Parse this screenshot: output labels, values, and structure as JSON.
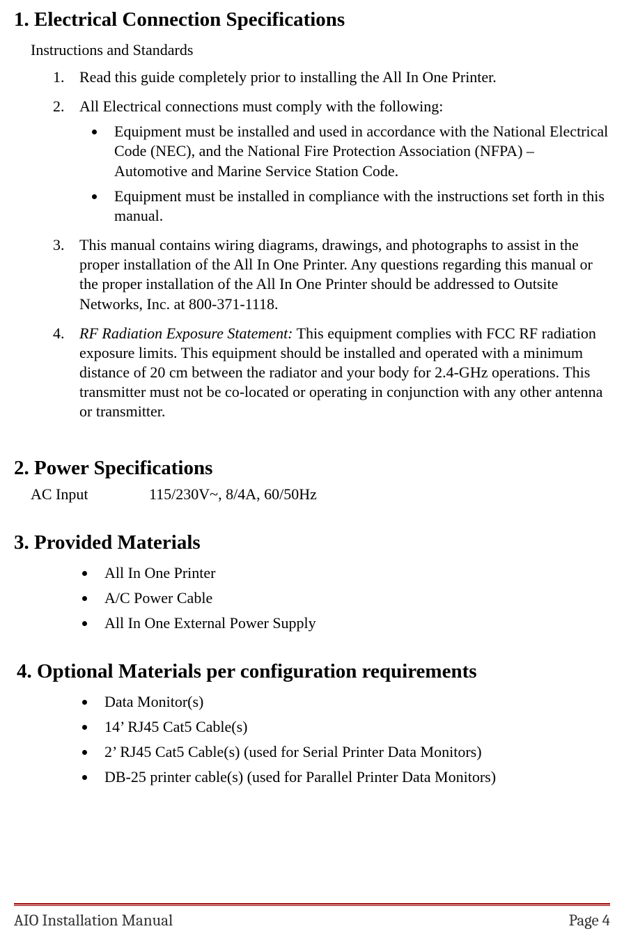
{
  "sections": {
    "s1": {
      "heading": "1. Electrical Connection Specifications",
      "subtitle": "Instructions and Standards",
      "items": [
        "Read this guide completely prior to installing the All In One Printer.",
        "All Electrical connections must comply with the following:",
        "This manual contains wiring diagrams, drawings, and photographs to assist in the proper installation of the All In One Printer.  Any questions regarding this manual or the proper installation of the All In One Printer should be addressed to Outsite Networks, Inc. at 800-371-1118."
      ],
      "item2_bullets": [
        "Equipment must be installed and used in accordance with the National Electrical Code (NEC), and the National Fire Protection Association (NFPA) – Automotive and Marine Service Station Code.",
        "Equipment must be installed in compliance with the instructions set forth in this manual."
      ],
      "item4_prefix_italic": "RF Radiation Exposure Statement:",
      "item4_rest": " This equipment complies with FCC RF radiation exposure limits. This equipment should be installed and operated with a minimum distance of 20 cm between the radiator and your body for 2.4-GHz operations. This transmitter must not be co-located or operating in conjunction with any other antenna or transmitter."
    },
    "s2": {
      "heading": "2. Power Specifications",
      "spec_label": "AC Input",
      "spec_value": "115/230V~, 8/4A, 60/50Hz"
    },
    "s3": {
      "heading": "3. Provided Materials",
      "bullets": [
        "All In One Printer",
        "A/C Power Cable",
        "All In One External Power Supply"
      ]
    },
    "s4": {
      "heading": "4.  Optional Materials per configuration requirements",
      "bullets": [
        "Data Monitor(s)",
        "14’ RJ45 Cat5 Cable(s)",
        "2’ RJ45 Cat5 Cable(s) (used for Serial Printer Data Monitors)",
        "DB-25 printer cable(s) (used for Parallel Printer Data Monitors)"
      ]
    }
  },
  "footer": {
    "left": "AIO Installation Manual",
    "right": "Page 4"
  },
  "colors": {
    "rule": "#990000",
    "text": "#000000",
    "footer_text": "#333333",
    "background": "#ffffff"
  }
}
